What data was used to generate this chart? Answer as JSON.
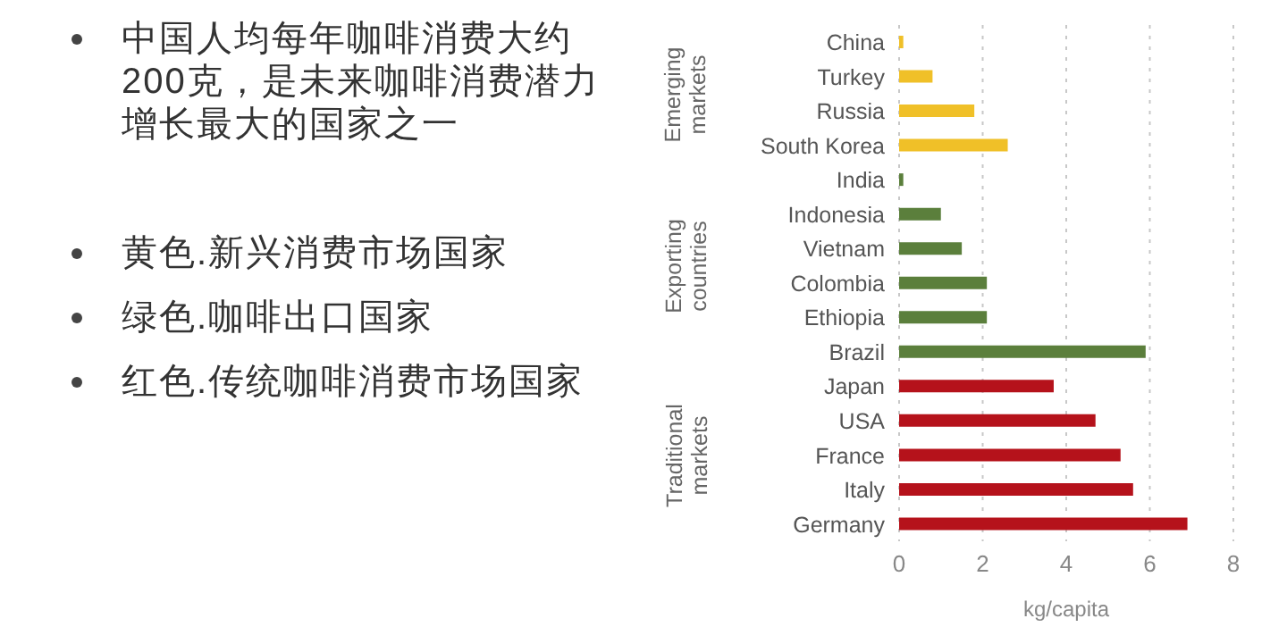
{
  "chart_data": {
    "type": "bar",
    "orientation": "horizontal",
    "categories": [
      "China",
      "Turkey",
      "Russia",
      "South Korea",
      "India",
      "Indonesia",
      "Vietnam",
      "Colombia",
      "Ethiopia",
      "Brazil",
      "Japan",
      "USA",
      "France",
      "Italy",
      "Germany"
    ],
    "values": [
      0.1,
      0.8,
      1.8,
      2.6,
      0.1,
      1.0,
      1.5,
      2.1,
      2.1,
      5.9,
      3.7,
      4.7,
      5.3,
      5.6,
      6.9
    ],
    "colors": [
      "#f0c028",
      "#f0c028",
      "#f0c028",
      "#f0c028",
      "#5b7f3c",
      "#5b7f3c",
      "#5b7f3c",
      "#5b7f3c",
      "#5b7f3c",
      "#5b7f3c",
      "#b5121b",
      "#b5121b",
      "#b5121b",
      "#b5121b",
      "#b5121b"
    ],
    "xlabel": "kg/capita",
    "xlim": [
      0,
      8
    ],
    "xticks": [
      0,
      2,
      4,
      6,
      8
    ],
    "grid": "x",
    "annotations": [
      "中国人均每年咖啡消费大约200克，是未来咖啡消费潜力增长最大的国家之一",
      "黄色.新兴消费市场国家",
      "绿色.咖啡出口国家",
      "红色.传统咖啡消费市场国家",
      "Emerging markets",
      "Exporting countries",
      "Traditional markets"
    ]
  }
}
